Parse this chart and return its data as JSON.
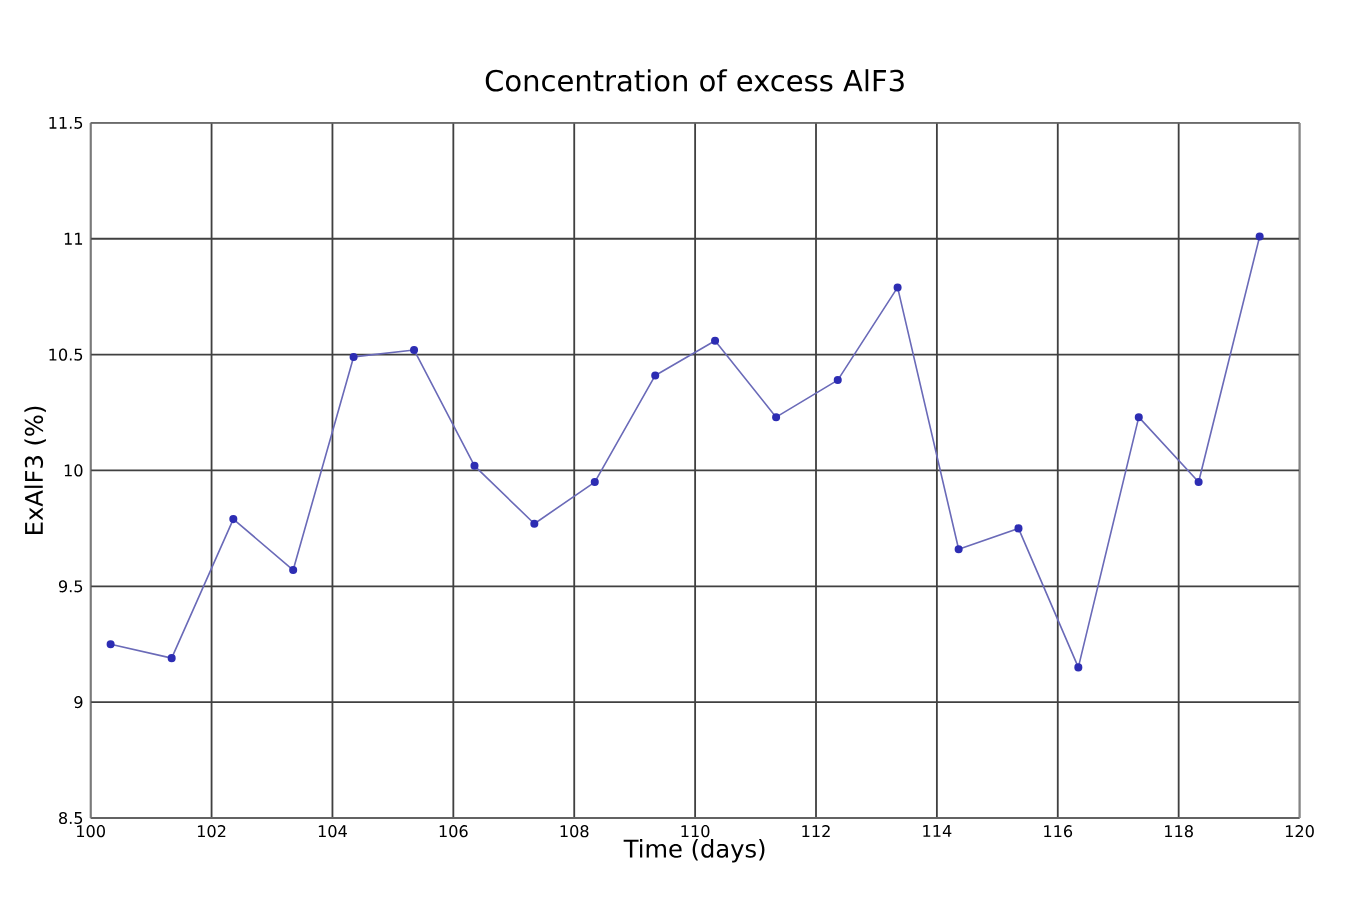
{
  "chart_data": {
    "type": "line",
    "title": "Concentration of excess AlF3",
    "xlabel": "Time (days)",
    "ylabel": "ExAlF3 (%)",
    "x": [
      100.33,
      101.34,
      102.36,
      103.35,
      104.35,
      105.35,
      106.35,
      107.34,
      108.34,
      109.34,
      110.33,
      111.34,
      112.36,
      113.35,
      114.36,
      115.35,
      116.34,
      117.34,
      118.33,
      119.34
    ],
    "values": [
      9.25,
      9.19,
      9.79,
      9.57,
      10.49,
      10.52,
      10.02,
      9.77,
      9.95,
      10.41,
      10.56,
      10.23,
      10.39,
      10.79,
      9.66,
      9.75,
      9.15,
      10.23,
      9.95,
      11.01
    ],
    "color": "#6a6ab8",
    "marker": "circle",
    "grid": true,
    "xlim": [
      100,
      120
    ],
    "xticks": [
      100,
      102,
      104,
      106,
      108,
      110,
      112,
      114,
      116,
      118,
      120
    ],
    "ylim": [
      8.5,
      11.5
    ],
    "yticks": [
      8.5,
      9,
      9.5,
      10,
      10.5,
      11,
      11.5
    ]
  }
}
